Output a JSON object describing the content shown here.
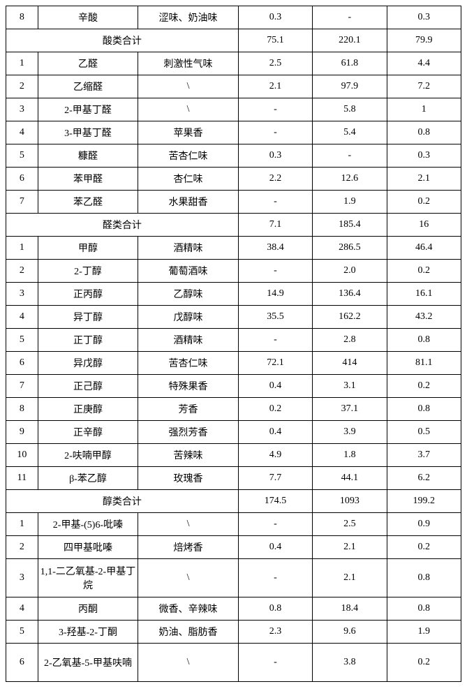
{
  "table": {
    "rows": [
      {
        "type": "data",
        "idx": "8",
        "name": "辛酸",
        "desc": "涩味、奶油味",
        "v1": "0.3",
        "v2": "-",
        "v3": "0.3"
      },
      {
        "type": "subtotal",
        "label": "酸类合计",
        "v1": "75.1",
        "v2": "220.1",
        "v3": "79.9"
      },
      {
        "type": "data",
        "idx": "1",
        "name": "乙醛",
        "desc": "刺激性气味",
        "v1": "2.5",
        "v2": "61.8",
        "v3": "4.4"
      },
      {
        "type": "data",
        "idx": "2",
        "name": "乙缩醛",
        "desc": "\\",
        "v1": "2.1",
        "v2": "97.9",
        "v3": "7.2"
      },
      {
        "type": "data",
        "idx": "3",
        "name": "2-甲基丁醛",
        "desc": "\\",
        "v1": "-",
        "v2": "5.8",
        "v3": "1"
      },
      {
        "type": "data",
        "idx": "4",
        "name": "3-甲基丁醛",
        "desc": "苹果香",
        "v1": "-",
        "v2": "5.4",
        "v3": "0.8"
      },
      {
        "type": "data",
        "idx": "5",
        "name": "糠醛",
        "desc": "苦杏仁味",
        "v1": "0.3",
        "v2": "-",
        "v3": "0.3"
      },
      {
        "type": "data",
        "idx": "6",
        "name": "苯甲醛",
        "desc": "杏仁味",
        "v1": "2.2",
        "v2": "12.6",
        "v3": "2.1"
      },
      {
        "type": "data",
        "idx": "7",
        "name": "苯乙醛",
        "desc": "水果甜香",
        "v1": "-",
        "v2": "1.9",
        "v3": "0.2"
      },
      {
        "type": "subtotal",
        "label": "醛类合计",
        "v1": "7.1",
        "v2": "185.4",
        "v3": "16"
      },
      {
        "type": "data",
        "idx": "1",
        "name": "甲醇",
        "desc": "酒精味",
        "v1": "38.4",
        "v2": "286.5",
        "v3": "46.4"
      },
      {
        "type": "data",
        "idx": "2",
        "name": "2-丁醇",
        "desc": "葡萄酒味",
        "v1": "-",
        "v2": "2.0",
        "v3": "0.2"
      },
      {
        "type": "data",
        "idx": "3",
        "name": "正丙醇",
        "desc": "乙醇味",
        "v1": "14.9",
        "v2": "136.4",
        "v3": "16.1"
      },
      {
        "type": "data",
        "idx": "4",
        "name": "异丁醇",
        "desc": "戊醇味",
        "v1": "35.5",
        "v2": "162.2",
        "v3": "43.2"
      },
      {
        "type": "data",
        "idx": "5",
        "name": "正丁醇",
        "desc": "酒精味",
        "v1": "-",
        "v2": "2.8",
        "v3": "0.8"
      },
      {
        "type": "data",
        "idx": "6",
        "name": "异戊醇",
        "desc": "苦杏仁味",
        "v1": "72.1",
        "v2": "414",
        "v3": "81.1"
      },
      {
        "type": "data",
        "idx": "7",
        "name": "正己醇",
        "desc": "特殊果香",
        "v1": "0.4",
        "v2": "3.1",
        "v3": "0.2"
      },
      {
        "type": "data",
        "idx": "8",
        "name": "正庚醇",
        "desc": "芳香",
        "v1": "0.2",
        "v2": "37.1",
        "v3": "0.8"
      },
      {
        "type": "data",
        "idx": "9",
        "name": "正辛醇",
        "desc": "强烈芳香",
        "v1": "0.4",
        "v2": "3.9",
        "v3": "0.5"
      },
      {
        "type": "data",
        "idx": "10",
        "name": "2-呋喃甲醇",
        "desc": "苦辣味",
        "v1": "4.9",
        "v2": "1.8",
        "v3": "3.7"
      },
      {
        "type": "data",
        "idx": "11",
        "name": "β-苯乙醇",
        "desc": "玫瑰香",
        "v1": "7.7",
        "v2": "44.1",
        "v3": "6.2"
      },
      {
        "type": "subtotal",
        "label": "醇类合计",
        "v1": "174.5",
        "v2": "1093",
        "v3": "199.2"
      },
      {
        "type": "data",
        "idx": "1",
        "name": "2-甲基-(5)6-吡嗪",
        "desc": "\\",
        "v1": "-",
        "v2": "2.5",
        "v3": "0.9"
      },
      {
        "type": "data",
        "idx": "2",
        "name": "四甲基吡嗪",
        "desc": "焙烤香",
        "v1": "0.4",
        "v2": "2.1",
        "v3": "0.2"
      },
      {
        "type": "data",
        "idx": "3",
        "name": "1,1-二乙氧基-2-甲基丁烷",
        "desc": "\\",
        "v1": "-",
        "v2": "2.1",
        "v3": "0.8",
        "tall": true
      },
      {
        "type": "data",
        "idx": "4",
        "name": "丙酮",
        "desc": "微香、辛辣味",
        "v1": "0.8",
        "v2": "18.4",
        "v3": "0.8"
      },
      {
        "type": "data",
        "idx": "5",
        "name": "3-羟基-2-丁酮",
        "desc": "奶油、脂肪香",
        "v1": "2.3",
        "v2": "9.6",
        "v3": "1.9"
      },
      {
        "type": "data",
        "idx": "6",
        "name": "2-乙氧基-5-甲基呋喃",
        "desc": "\\",
        "v1": "-",
        "v2": "3.8",
        "v3": "0.2",
        "tall": true
      }
    ]
  }
}
